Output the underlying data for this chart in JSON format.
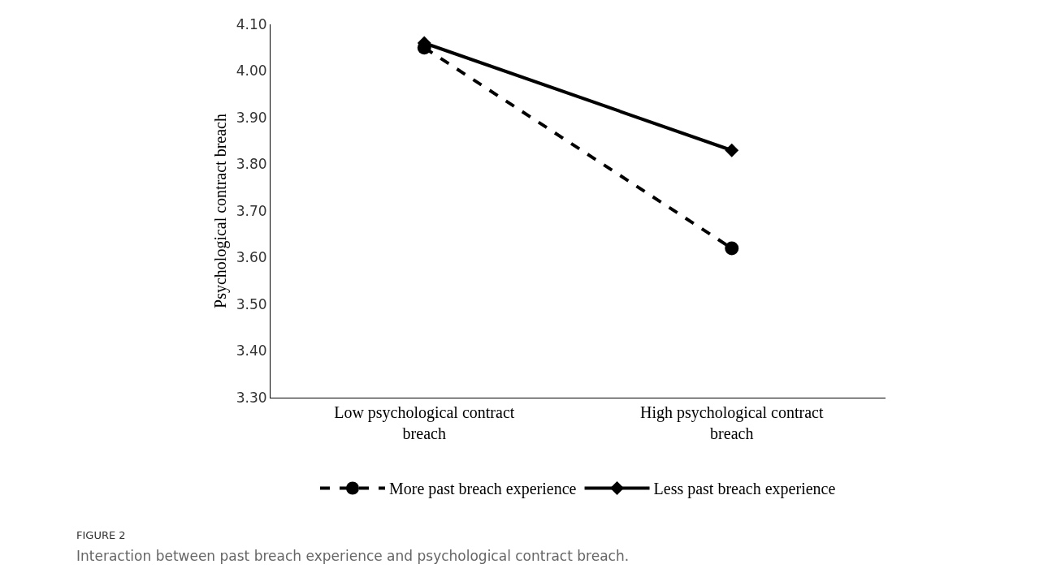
{
  "chart_data": {
    "type": "line",
    "ylabel": "Psychological contract breach",
    "categories": [
      "Low psychological contract breach",
      "High psychological contract breach"
    ],
    "series": [
      {
        "name": "More past breach experience",
        "color": "#000000",
        "values": [
          4.05,
          3.62
        ],
        "marker": "circle",
        "line_style": "dashed"
      },
      {
        "name": "Less past breach experience",
        "color": "#000000",
        "values": [
          4.06,
          3.83
        ],
        "marker": "diamond",
        "line_style": "solid"
      }
    ],
    "ylim": [
      3.3,
      4.1
    ],
    "yticks": [
      {
        "value": 3.3,
        "label": "3.30"
      },
      {
        "value": 3.4,
        "label": "3.40"
      },
      {
        "value": 3.5,
        "label": "3.50"
      },
      {
        "value": 3.6,
        "label": "3.60"
      },
      {
        "value": 3.7,
        "label": "3.70"
      },
      {
        "value": 3.8,
        "label": "3.80"
      },
      {
        "value": 3.9,
        "label": "3.90"
      },
      {
        "value": 4.0,
        "label": "4.00"
      },
      {
        "value": 4.1,
        "label": "4.10"
      }
    ],
    "grid": false,
    "legend": "bottom",
    "annotations": [
      "FIGURE 2",
      "Interaction between past breach experience and psychological contract breach."
    ]
  }
}
